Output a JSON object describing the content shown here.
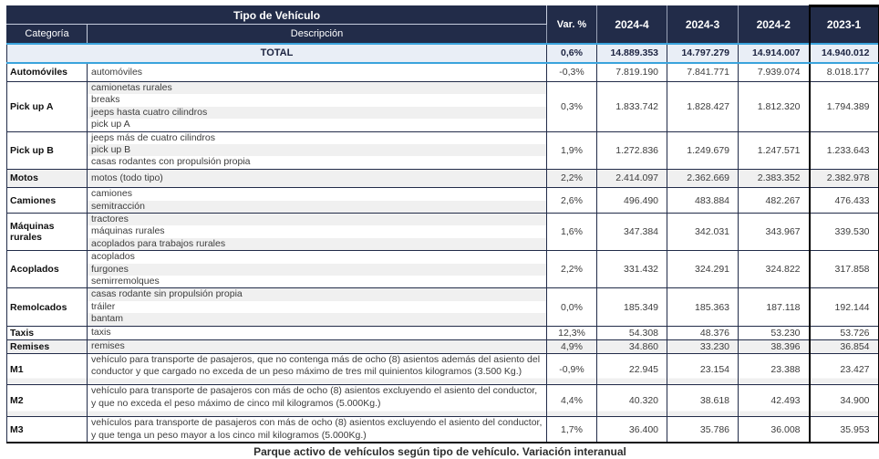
{
  "header": {
    "group_title": "Tipo de Vehículo",
    "col_categoria": "Categoría",
    "col_descripcion": "Descripción",
    "col_var": "Var. %",
    "periods": [
      "2024-4",
      "2024-3",
      "2024-2",
      "2023-1"
    ]
  },
  "total_row": {
    "label": "TOTAL",
    "var": "0,6%",
    "values": [
      "14.889.353",
      "14.797.279",
      "14.914.007",
      "14.940.012"
    ]
  },
  "rows": [
    {
      "category": "Automóviles",
      "lines": [
        {
          "text": "automóviles",
          "shaded": false
        }
      ],
      "var": "-0,3%",
      "values": [
        "7.819.190",
        "7.841.771",
        "7.939.074",
        "8.018.177"
      ],
      "row_shaded": false
    },
    {
      "category": "Pick up A",
      "lines": [
        {
          "text": "camionetas rurales",
          "shaded": true
        },
        {
          "text": "breaks",
          "shaded": false
        },
        {
          "text": "jeeps hasta cuatro cilindros",
          "shaded": true
        },
        {
          "text": "pick up A",
          "shaded": false
        }
      ],
      "var": "0,3%",
      "values": [
        "1.833.742",
        "1.828.427",
        "1.812.320",
        "1.794.389"
      ]
    },
    {
      "category": "Pick up B",
      "lines": [
        {
          "text": "jeeps más de cuatro cilindros",
          "shaded": false
        },
        {
          "text": "pick up B",
          "shaded": true
        },
        {
          "text": "casas rodantes con propulsión propia",
          "shaded": false
        }
      ],
      "var": "1,9%",
      "values": [
        "1.272.836",
        "1.249.679",
        "1.247.571",
        "1.233.643"
      ]
    },
    {
      "category": "Motos",
      "lines": [
        {
          "text": "motos (todo tipo)",
          "shaded": true
        }
      ],
      "var": "2,2%",
      "values": [
        "2.414.097",
        "2.362.669",
        "2.383.352",
        "2.382.978"
      ],
      "row_shaded": true
    },
    {
      "category": "Camiones",
      "lines": [
        {
          "text": "camiones",
          "shaded": false
        },
        {
          "text": "semitracción",
          "shaded": true
        }
      ],
      "var": "2,6%",
      "values": [
        "496.490",
        "483.884",
        "482.267",
        "476.433"
      ]
    },
    {
      "category": "Máquinas rurales",
      "lines": [
        {
          "text": "tractores",
          "shaded": true
        },
        {
          "text": "máquinas rurales",
          "shaded": false
        },
        {
          "text": "acoplados para trabajos rurales",
          "shaded": true
        }
      ],
      "var": "1,6%",
      "values": [
        "347.384",
        "342.031",
        "343.967",
        "339.530"
      ]
    },
    {
      "category": "Acoplados",
      "lines": [
        {
          "text": "acoplados",
          "shaded": false
        },
        {
          "text": "furgones",
          "shaded": true
        },
        {
          "text": "semirremolques",
          "shaded": false
        }
      ],
      "var": "2,2%",
      "values": [
        "331.432",
        "324.291",
        "324.822",
        "317.858"
      ]
    },
    {
      "category": "Remolcados",
      "lines": [
        {
          "text": "casas rodante sin propulsión propia",
          "shaded": true
        },
        {
          "text": "tráiler",
          "shaded": false
        },
        {
          "text": "bantam",
          "shaded": true
        }
      ],
      "var": "0,0%",
      "values": [
        "185.349",
        "185.363",
        "187.118",
        "192.144"
      ]
    },
    {
      "category": "Taxis",
      "lines": [
        {
          "text": "taxis",
          "shaded": false
        }
      ],
      "var": "12,3%",
      "values": [
        "54.308",
        "48.376",
        "53.230",
        "53.726"
      ],
      "row_shaded": false
    },
    {
      "category": "Remises",
      "lines": [
        {
          "text": "remises",
          "shaded": true
        }
      ],
      "var": "4,9%",
      "values": [
        "34.860",
        "33.230",
        "38.396",
        "36.854"
      ],
      "row_shaded": true
    },
    {
      "category": "M1",
      "lines": [
        {
          "text": "vehículo para transporte de pasajeros, que no contenga más de ocho (8) asientos además del asiento del conductor y que cargado no exceda de un peso máximo de tres mil quinientos kilogramos (3.500 Kg.)",
          "shaded": false
        }
      ],
      "var": "-0,9%",
      "values": [
        "22.945",
        "23.154",
        "23.388",
        "23.427"
      ],
      "bottom_strip": true
    },
    {
      "category": "M2",
      "lines": [
        {
          "text": "vehículo para transporte de pasajeros con más de ocho (8) asientos excluyendo el asiento del conductor, y que no exceda el peso máximo de cinco mil kilogramos (5.000Kg.)",
          "shaded": false
        }
      ],
      "var": "4,4%",
      "values": [
        "40.320",
        "38.618",
        "42.493",
        "34.900"
      ],
      "bottom_strip": true
    },
    {
      "category": "M3",
      "lines": [
        {
          "text": "vehículos para transporte de pasajeros con más de ocho (8) asientos excluyendo el asiento del conductor, y que tenga un peso mayor a los cinco mil kilogramos (5.000Kg.)",
          "shaded": false
        }
      ],
      "var": "1,7%",
      "values": [
        "36.400",
        "35.786",
        "36.008",
        "35.953"
      ]
    }
  ],
  "caption": "Parque activo de vehículos según tipo de vehículo. Variación interanual",
  "colors": {
    "navy": "#222c49",
    "cyan": "#3aa3dc",
    "totalbg": "#e9eef6",
    "stripe": "#f0f0f0"
  },
  "chart_data": {
    "type": "table",
    "title": "Tipo de Vehículo",
    "columns": [
      "Categoría",
      "Descripción",
      "Var. %",
      "2024-4",
      "2024-3",
      "2024-2",
      "2023-1"
    ],
    "rows": [
      [
        "TOTAL",
        "",
        0.6,
        14889353,
        14797279,
        14914007,
        14940012
      ],
      [
        "Automóviles",
        "automóviles",
        -0.3,
        7819190,
        7841771,
        7939074,
        8018177
      ],
      [
        "Pick up A",
        "camionetas rurales / breaks / jeeps hasta cuatro cilindros / pick up A",
        0.3,
        1833742,
        1828427,
        1812320,
        1794389
      ],
      [
        "Pick up B",
        "jeeps más de cuatro cilindros / pick up B / casas rodantes con propulsión propia",
        1.9,
        1272836,
        1249679,
        1247571,
        1233643
      ],
      [
        "Motos",
        "motos (todo tipo)",
        2.2,
        2414097,
        2362669,
        2383352,
        2382978
      ],
      [
        "Camiones",
        "camiones / semitracción",
        2.6,
        496490,
        483884,
        482267,
        476433
      ],
      [
        "Máquinas rurales",
        "tractores / máquinas rurales / acoplados para trabajos rurales",
        1.6,
        347384,
        342031,
        343967,
        339530
      ],
      [
        "Acoplados",
        "acoplados / furgones / semirremolques",
        2.2,
        331432,
        324291,
        324822,
        317858
      ],
      [
        "Remolcados",
        "casas rodante sin propulsión propia / tráiler / bantam",
        0.0,
        185349,
        185363,
        187118,
        192144
      ],
      [
        "Taxis",
        "taxis",
        12.3,
        54308,
        48376,
        53230,
        53726
      ],
      [
        "Remises",
        "remises",
        4.9,
        34860,
        33230,
        38396,
        36854
      ],
      [
        "M1",
        "vehículo para transporte de pasajeros, que no contenga más de ocho (8) asientos además del asiento del conductor y que cargado no exceda de un peso máximo de tres mil quinientos kilogramos (3.500 Kg.)",
        -0.9,
        22945,
        23154,
        23388,
        23427
      ],
      [
        "M2",
        "vehículo para transporte de pasajeros con más de ocho (8) asientos excluyendo el asiento del conductor, y que no exceda el peso máximo de cinco mil kilogramos (5.000Kg.)",
        4.4,
        40320,
        38618,
        42493,
        34900
      ],
      [
        "M3",
        "vehículos para transporte de pasajeros con más de ocho (8) asientos excluyendo el asiento del conductor, y que tenga un peso mayor a los cinco mil kilogramos (5.000Kg.)",
        1.7,
        36400,
        35786,
        36008,
        35953
      ]
    ]
  }
}
